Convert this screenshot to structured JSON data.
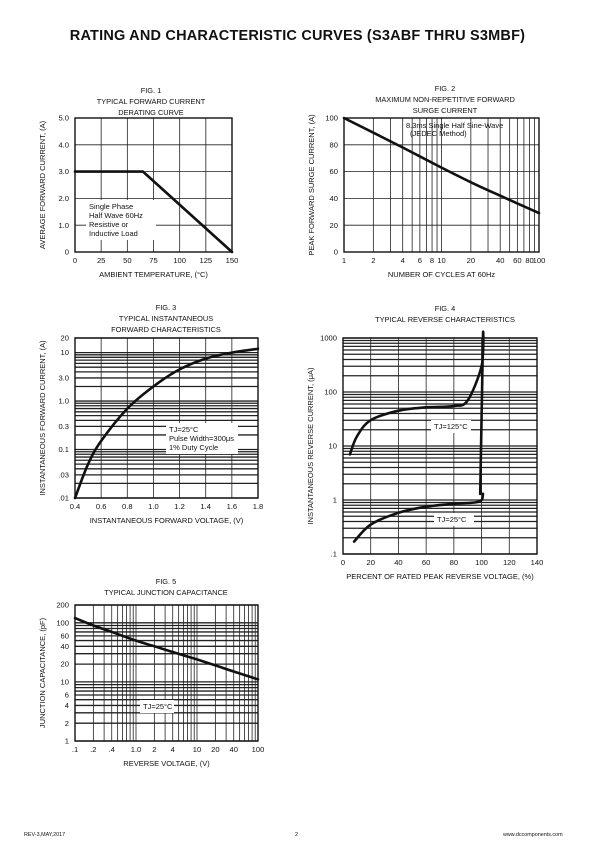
{
  "title": "RATING AND CHARACTERISTIC CURVES (S3ABF THRU S3MBF)",
  "footer": {
    "left": "REV-3,MAY,2017",
    "center": "2",
    "right": "www.dccomponents.com"
  },
  "figures": [
    {
      "caption": [
        "FIG. 1",
        "TYPICAL FORWARD CURRENT",
        "DERATING CURVE"
      ]
    },
    {
      "caption": [
        "FIG. 2",
        "MAXIMUM NON-REPETITIVE FORWARD",
        "SURGE CURRENT"
      ]
    },
    {
      "caption": [
        "FIG. 3",
        "TYPICAL INSTANTANEOUS",
        "FORWARD CHARACTERISTICS"
      ]
    },
    {
      "caption": [
        "FIG. 4",
        "TYPICAL REVERSE CHARACTERISTICS"
      ]
    },
    {
      "caption": [
        "FIG. 5",
        "TYPICAL JUNCTION CAPACITANCE"
      ]
    }
  ],
  "chart_data": [
    {
      "type": "line",
      "xlabel": "AMBIENT TEMPERATURE, (°C)",
      "ylabel": "AVERAGE FORWARD CURRENT, (A)",
      "xlim": [
        0,
        150
      ],
      "ylim": [
        0,
        5
      ],
      "xticks": [
        "0",
        "25",
        "50",
        "75",
        "100",
        "125",
        "150"
      ],
      "yticks": [
        "0",
        "1.0",
        "2.0",
        "3.0",
        "4.0",
        "5.0"
      ],
      "grid": true,
      "annotation": [
        "Single Phase",
        "Half Wave 60Hz",
        "Resistive or",
        "Inductive Load"
      ],
      "series": [
        {
          "x": [
            0,
            65,
            150
          ],
          "y": [
            3.0,
            3.0,
            0
          ]
        }
      ]
    },
    {
      "type": "line",
      "xscale": "log",
      "xlabel": "NUMBER OF CYCLES AT 60Hz",
      "ylabel": "PEAK FORWARD SURGE  CURRENT, (A)",
      "xlim": [
        1,
        100
      ],
      "ylim": [
        0,
        100
      ],
      "xticks": [
        "1",
        "2",
        "4",
        "6",
        "8",
        "10",
        "20",
        "40",
        "60",
        "80",
        "100"
      ],
      "yticks": [
        "0",
        "20",
        "40",
        "60",
        "80",
        "100"
      ],
      "grid": true,
      "annotation": [
        "8.3ms Single Half Sine-Wave",
        "(JEDEC Method)"
      ],
      "series": [
        {
          "x": [
            1,
            2,
            4,
            10,
            20,
            40,
            100
          ],
          "y": [
            100,
            89,
            78,
            63,
            52,
            42,
            29
          ]
        }
      ]
    },
    {
      "type": "line",
      "yscale": "log",
      "xlabel": "INSTANTANEOUS FORWARD VOLTAGE, (V)",
      "ylabel": "INSTANTANEOUS FORWARD CURRENT, (A)",
      "xlim": [
        0.4,
        1.8
      ],
      "ylim": [
        0.01,
        20
      ],
      "xticks": [
        "0.4",
        "0.6",
        "0.8",
        "1.0",
        "1.2",
        "1.4",
        "1.6",
        "1.8"
      ],
      "yticks": [
        ".01",
        ".03",
        "0.1",
        "0.3",
        "1.0",
        "3.0",
        "10",
        "20"
      ],
      "grid": true,
      "annotation": [
        "TJ=25°C",
        "Pulse Width=300μs",
        "1% Duty Cycle"
      ],
      "series": [
        {
          "x": [
            0.4,
            0.5,
            0.6,
            0.8,
            1.0,
            1.2,
            1.4,
            1.6,
            1.8
          ],
          "y": [
            0.01,
            0.05,
            0.15,
            0.7,
            2.0,
            4.5,
            7.5,
            10,
            12
          ]
        }
      ]
    },
    {
      "type": "line",
      "yscale": "log",
      "xlabel": "PERCENT OF RATED PEAK REVERSE VOLTAGE, (%)",
      "ylabel": "INSTANTANEOUS REVERSE CURRENT, (μA)",
      "xlim": [
        0,
        140
      ],
      "ylim": [
        0.1,
        1000
      ],
      "xticks": [
        "0",
        "20",
        "40",
        "60",
        "80",
        "100",
        "120",
        "140"
      ],
      "yticks": [
        ".1",
        "1",
        "10",
        "100",
        "1000"
      ],
      "grid": true,
      "series": [
        {
          "name": "TJ=125°C",
          "x": [
            5,
            10,
            20,
            40,
            60,
            80,
            90,
            100,
            101,
            99
          ],
          "y": [
            7,
            15,
            30,
            45,
            52,
            55,
            70,
            300,
            1000,
            1.3
          ]
        },
        {
          "name": "TJ=25°C",
          "x": [
            8,
            20,
            40,
            60,
            80,
            95,
            100,
            101
          ],
          "y": [
            0.17,
            0.35,
            0.58,
            0.75,
            0.85,
            0.9,
            1.0,
            1.3
          ]
        }
      ]
    },
    {
      "type": "line",
      "xscale": "log",
      "yscale": "log",
      "xlabel": "REVERSE VOLTAGE, (V)",
      "ylabel": "JUNCTION CAPACITANCE, (pF)",
      "xlim": [
        0.1,
        100
      ],
      "ylim": [
        1,
        200
      ],
      "xticks": [
        ".1",
        ".2",
        ".4",
        "1.0",
        "2",
        "4",
        "10",
        "20",
        "40",
        "100"
      ],
      "yticks": [
        "1",
        "2",
        "4",
        "6",
        "10",
        "20",
        "40",
        "60",
        "100",
        "200"
      ],
      "grid": true,
      "annotation": [
        "TJ=25°C"
      ],
      "series": [
        {
          "x": [
            0.1,
            0.2,
            0.4,
            1,
            2,
            4,
            10,
            20,
            40,
            100
          ],
          "y": [
            120,
            90,
            70,
            50,
            40,
            32,
            24,
            19,
            15,
            11
          ]
        }
      ]
    }
  ]
}
